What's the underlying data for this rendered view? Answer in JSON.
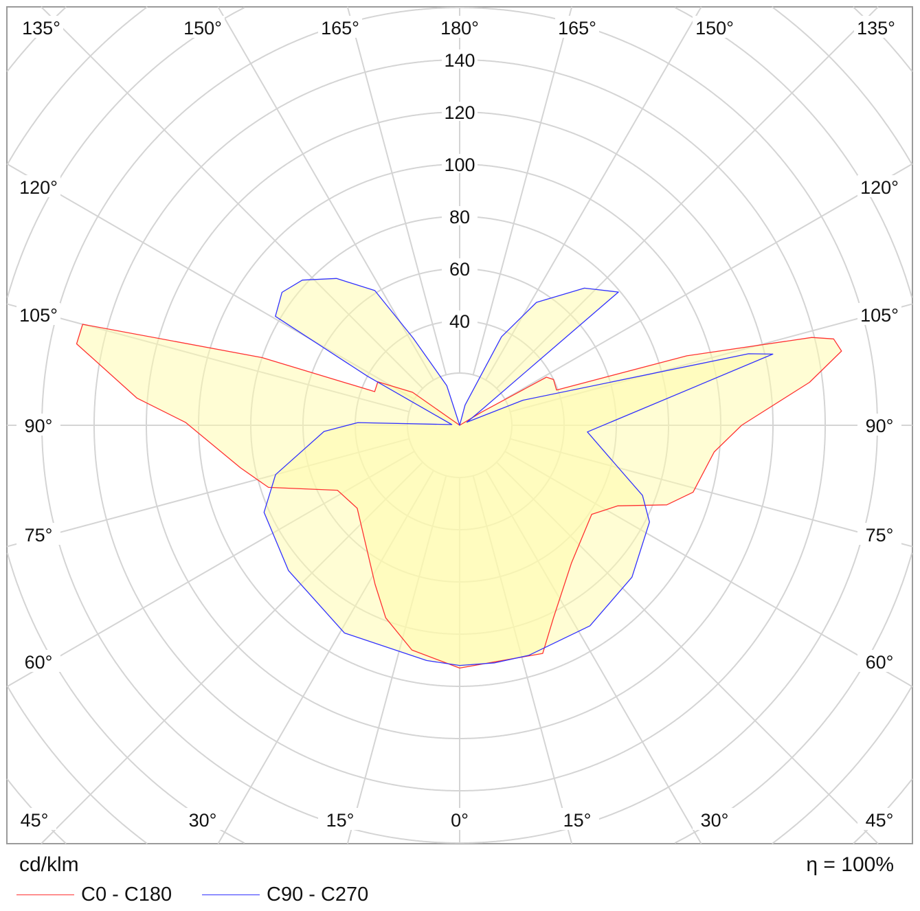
{
  "chart_data": {
    "type": "polar",
    "unit_label": "cd/klm",
    "efficiency_label": "η = 100%",
    "radial_ticks": [
      40,
      60,
      80,
      100,
      120,
      140
    ],
    "radial_grid_step": 20,
    "angle_labels": {
      "top": [
        "135°",
        "150°",
        "165°",
        "180°",
        "165°",
        "150°",
        "135°"
      ],
      "left": [
        "120°",
        "105°",
        "90°",
        "75°",
        "60°"
      ],
      "right": [
        "120°",
        "105°",
        "90°",
        "75°",
        "60°"
      ],
      "bottom": [
        "45°",
        "30°",
        "15°",
        "0°",
        "15°",
        "30°",
        "45°"
      ]
    },
    "series": [
      {
        "name": "C0 - C180",
        "color": "#ff3030",
        "right": [
          [
            0,
            93
          ],
          [
            20,
            93
          ],
          [
            26,
            82
          ],
          [
            39,
            68
          ],
          [
            56,
            61
          ],
          [
            63,
            68
          ],
          [
            69,
            85
          ],
          [
            74,
            93
          ],
          [
            84,
            98
          ],
          [
            90,
            108
          ],
          [
            97,
            135
          ],
          [
            101,
            149
          ],
          [
            103,
            147
          ],
          [
            104,
            139
          ],
          [
            107,
            91
          ],
          [
            110,
            39.5
          ],
          [
            116,
            40
          ],
          [
            119,
            38
          ],
          [
            121,
            9.6
          ],
          [
            125,
            0
          ]
        ],
        "left": [
          [
            0,
            93
          ],
          [
            12,
            88
          ],
          [
            21,
            79
          ],
          [
            28,
            69
          ],
          [
            51,
            50.5
          ],
          [
            62,
            53
          ],
          [
            72,
            77
          ],
          [
            79,
            85.5
          ],
          [
            90.6,
            105
          ],
          [
            94.8,
            124
          ],
          [
            102,
            150
          ],
          [
            105,
            149.5
          ],
          [
            108.9,
            80
          ],
          [
            111.6,
            35
          ],
          [
            118,
            35.5
          ],
          [
            125,
            22
          ],
          [
            130,
            0
          ]
        ]
      },
      {
        "name": "C90 - C270",
        "color": "#3030ff",
        "right": [
          [
            0,
            92
          ],
          [
            8.4,
            92
          ],
          [
            16.7,
            92
          ],
          [
            33,
            91.6
          ],
          [
            48.6,
            88
          ],
          [
            63,
            81.6
          ],
          [
            69,
            75
          ],
          [
            75,
            63
          ],
          [
            87,
            49
          ],
          [
            102.8,
            123
          ],
          [
            103.9,
            114
          ],
          [
            111.6,
            26
          ],
          [
            113,
            3
          ],
          [
            125,
            10
          ],
          [
            130,
            79.4
          ],
          [
            137.7,
            71
          ],
          [
            148,
            55.5
          ],
          [
            154.7,
            37.5
          ],
          [
            165,
            8
          ],
          [
            175,
            0
          ]
        ],
        "left": [
          [
            0,
            92
          ],
          [
            8,
            91
          ],
          [
            29,
            91
          ],
          [
            49.7,
            86
          ],
          [
            66,
            82
          ],
          [
            75,
            73
          ],
          [
            87.4,
            52
          ],
          [
            91.5,
            39
          ],
          [
            95,
            3
          ],
          [
            118,
            40
          ],
          [
            120.6,
            82
          ],
          [
            126.8,
            85
          ],
          [
            132.7,
            82
          ],
          [
            140,
            73.4
          ],
          [
            147.8,
            61
          ],
          [
            151.9,
            38
          ],
          [
            162,
            16
          ],
          [
            170,
            0
          ]
        ]
      }
    ]
  }
}
